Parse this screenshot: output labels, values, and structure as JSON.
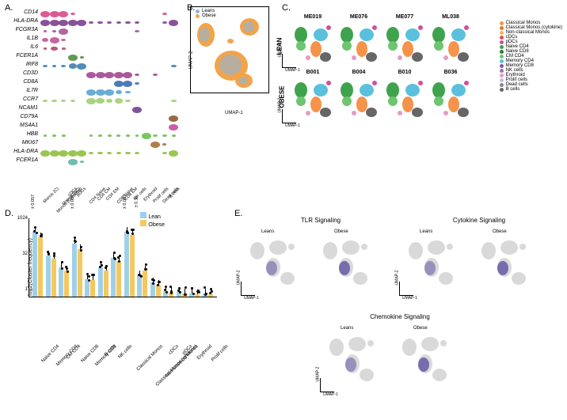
{
  "panelLabels": {
    "A": "A.",
    "B": "B.",
    "C": "C.",
    "D": "D.",
    "E": "E."
  },
  "panelA": {
    "genes": [
      "CD14",
      "HLA-DRA",
      "FCGR3A",
      "IL1B",
      "IL6",
      "FCER1A",
      "IRF8",
      "CD3D",
      "CD8A",
      "IL7R",
      "CCR7",
      "NCAM1",
      "CD79A",
      "MS4A1",
      "HBB",
      "MKI67",
      "HLA-DRA",
      "FCER1A"
    ],
    "xcats": [
      "Monos (C)",
      "Monos (Cytokine)",
      "Monos (NC)",
      "cDCs",
      "pDCs",
      "CD4 Naive",
      "CD4 CM",
      "CD4 EM",
      "CD8 Naive",
      "CD8 EM",
      "NK cells",
      "Erythroid",
      "Prolif cells",
      "Dead cells",
      "B cells"
    ],
    "colors": [
      "#d94889",
      "#7c3f8d",
      "#a85597",
      "#c05593",
      "#b2476f",
      "#4f8f3d",
      "#3e7fb1",
      "#a24690",
      "#3a6db0",
      "#5aa3d0",
      "#9fcf71",
      "#73408f",
      "#8f5a2b",
      "#c94b9a",
      "#6bbf4f",
      "#a96f3a",
      "#8fbf3d",
      "#5fb5a7"
    ],
    "expression": [
      [
        1,
        1,
        1,
        0.2,
        0,
        0,
        0,
        0,
        0,
        0,
        0,
        0,
        0,
        0.2,
        0
      ],
      [
        1,
        1,
        1,
        1,
        1,
        0.3,
        0.3,
        0.3,
        0.3,
        0.3,
        0.2,
        0,
        0,
        0.2,
        1
      ],
      [
        0.1,
        0.1,
        1,
        0,
        0,
        0,
        0,
        0,
        0,
        0,
        0.3,
        0,
        0,
        0,
        0
      ],
      [
        0.5,
        1,
        0.3,
        0,
        0,
        0,
        0,
        0,
        0,
        0,
        0,
        0,
        0,
        0,
        0
      ],
      [
        0.1,
        0.6,
        0.1,
        0,
        0,
        0,
        0,
        0,
        0,
        0,
        0,
        0,
        0,
        0,
        0
      ],
      [
        0,
        0,
        0,
        1,
        0.2,
        0,
        0,
        0,
        0,
        0,
        0,
        0,
        0,
        0,
        0
      ],
      [
        0.2,
        0.2,
        0.3,
        0.8,
        1,
        0,
        0,
        0,
        0,
        0,
        0,
        0,
        0,
        0,
        0.3
      ],
      [
        0,
        0,
        0,
        0,
        0,
        1,
        1,
        1,
        1,
        1,
        0.2,
        0,
        0.3,
        0,
        0
      ],
      [
        0,
        0,
        0,
        0,
        0,
        0,
        0,
        0,
        1,
        1,
        0.3,
        0,
        0,
        0,
        0
      ],
      [
        0,
        0,
        0,
        0,
        0,
        1,
        1,
        1,
        0.5,
        0.3,
        0,
        0,
        0,
        0,
        0
      ],
      [
        0.3,
        0.3,
        0.2,
        0.2,
        0,
        1,
        0.8,
        0.5,
        0.8,
        0.3,
        0,
        0,
        0,
        0,
        0.3
      ],
      [
        0,
        0,
        0,
        0,
        0,
        0,
        0,
        0,
        0,
        0,
        1,
        0,
        0,
        0,
        0
      ],
      [
        0,
        0,
        0,
        0,
        0,
        0,
        0,
        0,
        0,
        0,
        0,
        0,
        0,
        0,
        1
      ],
      [
        0,
        0,
        0,
        0,
        0,
        0,
        0,
        0,
        0,
        0,
        0,
        0,
        0,
        0,
        1
      ],
      [
        0.1,
        0.1,
        0.1,
        0,
        0,
        0.1,
        0.1,
        0.1,
        0.1,
        0.1,
        0.1,
        1,
        0.2,
        0.3,
        0.1
      ],
      [
        0,
        0,
        0,
        0,
        0,
        0,
        0,
        0,
        0,
        0,
        0,
        0,
        1,
        0.1,
        0
      ],
      [
        1,
        1,
        1,
        1,
        1,
        0.3,
        0.3,
        0.3,
        0.3,
        0.3,
        0.2,
        0,
        0,
        0.2,
        1
      ],
      [
        0,
        0,
        0,
        1,
        0.2,
        0,
        0,
        0,
        0,
        0,
        0,
        0,
        0,
        0,
        0
      ]
    ]
  },
  "panelB": {
    "legend": [
      {
        "label": "Leans",
        "color": "#8fb5d9"
      },
      {
        "label": "Obese",
        "color": "#f2a44a"
      }
    ],
    "axisX": "UMAP-1",
    "axisY": "UMAP-2"
  },
  "panelC": {
    "leanSamples": [
      "ME019",
      "ME076",
      "ME077",
      "ML038"
    ],
    "obeseSamples": [
      "B001",
      "B004",
      "B010",
      "B036"
    ],
    "groupLean": "LEAN",
    "groupObese": "OBESE",
    "axisX": "UMAP-1",
    "axisY": "UMAP-2",
    "celltypes": [
      {
        "label": "Classical Monos",
        "color": "#f5934a"
      },
      {
        "label": "Classical Monos (cytokine)",
        "color": "#e67628"
      },
      {
        "label": "Non-classical Monos",
        "color": "#f7b267"
      },
      {
        "label": "cDCs",
        "color": "#d9534f"
      },
      {
        "label": "pDCs",
        "color": "#d24da0"
      },
      {
        "label": "Naive CD4",
        "color": "#3fa34d"
      },
      {
        "label": "Naive CD8",
        "color": "#2d7d3a"
      },
      {
        "label": "CM CD4",
        "color": "#6fc46f"
      },
      {
        "label": "Memory CD4",
        "color": "#5bc0de"
      },
      {
        "label": "Memory CD8",
        "color": "#7e5fa8"
      },
      {
        "label": "NK cells",
        "color": "#a66fb3"
      },
      {
        "label": "Erythroid",
        "color": "#e59ac4"
      },
      {
        "label": "Prolif cells",
        "color": "#cdbde0"
      },
      {
        "label": "Dead cells",
        "color": "#888888"
      },
      {
        "label": "B cells",
        "color": "#666666"
      }
    ]
  },
  "panelD": {
    "ylabel": "log2(Cluster frequency)",
    "legend": [
      {
        "label": "Lean",
        "color": "#9fd0e8"
      },
      {
        "label": "Obese",
        "color": "#f4c860"
      }
    ],
    "yticks": [
      "1024",
      "32",
      "1"
    ],
    "categories": [
      "Naive CD4",
      "Memory CD4",
      "CM CD4",
      "Naive CD8",
      "Memory CD8",
      "B cells",
      "NK cells",
      "Classical Monos",
      "Classical Monos (cytokine)",
      "Non-classical Monos",
      "cDCs",
      "pDCs",
      "Erythroid",
      "Prolif cells"
    ],
    "lean": [
      55,
      35,
      25,
      45,
      15,
      25,
      33,
      55,
      18,
      12,
      5,
      4,
      3,
      3
    ],
    "obese": [
      50,
      32,
      22,
      40,
      14,
      22,
      30,
      52,
      22,
      10,
      4,
      3,
      2,
      2
    ],
    "pvals": {
      "0": "± 0.057",
      "3": "± 0.057",
      "7": "± 0.057",
      "8": "± 0.11"
    }
  },
  "panelE": {
    "blocks": [
      {
        "title": "TLR Signaling",
        "labels": [
          "Leans",
          "Obese"
        ]
      },
      {
        "title": "Cytokine Signaling",
        "labels": [
          "Leans",
          "Obese"
        ]
      },
      {
        "title": "Chemokine Signaling",
        "labels": [
          "Leans",
          "Obese"
        ]
      }
    ],
    "axisX": "UMAP-1",
    "axisY": "UMAP-2",
    "highlight": "#6b5fa8",
    "grey": "#d9d9d9"
  }
}
